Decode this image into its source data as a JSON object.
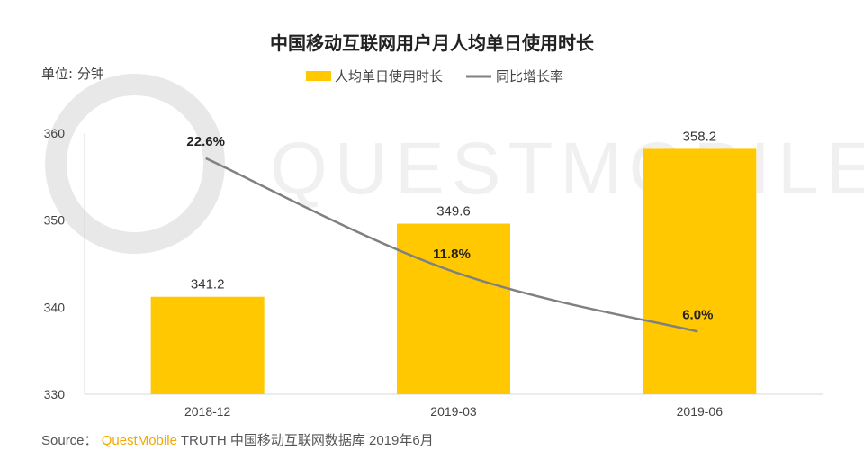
{
  "chart_data": {
    "type": "bar",
    "title": "中国移动互联网用户月人均单日使用时长",
    "unit_label": "单位: 分钟",
    "categories": [
      "2018-12",
      "2019-03",
      "2019-06"
    ],
    "series": [
      {
        "name": "人均单日使用时长",
        "kind": "bar",
        "values": [
          341.2,
          349.6,
          358.2
        ],
        "labels": [
          "341.2",
          "349.6",
          "358.2"
        ],
        "color": "#FFC800"
      },
      {
        "name": "同比增长率",
        "kind": "line",
        "values": [
          22.6,
          11.8,
          6.0
        ],
        "labels": [
          "22.6%",
          "11.8%",
          "6.0%"
        ],
        "color": "#808080",
        "secondary_axis": true
      }
    ],
    "ylim": [
      330,
      360
    ],
    "yticks": [
      "330",
      "340",
      "350",
      "360"
    ],
    "grid": false,
    "legend": "top-center"
  },
  "watermark": "QUESTMOBILE",
  "source": {
    "prefix": "Source：",
    "brand": "QuestMobile",
    "text": "TRUTH 中国移动互联网数据库 2019年6月"
  }
}
